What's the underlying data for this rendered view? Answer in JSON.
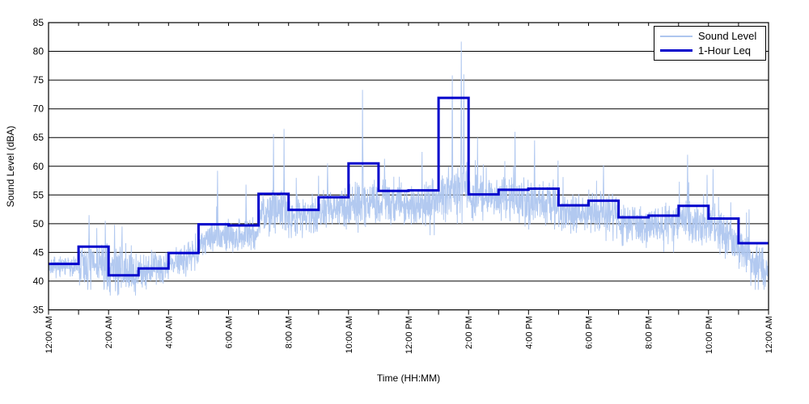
{
  "colors": {
    "background": "#ffffff",
    "grid": "#000000",
    "axis": "#000000",
    "text": "#000000",
    "sound_level_line": "#aec6ef",
    "leq_line": "#0000cc"
  },
  "chart_data": {
    "type": "line",
    "title": "",
    "xlabel": "Time (HH:MM)",
    "ylabel": "Sound Level (dBA)",
    "x_axis": {
      "unit": "hour-of-day",
      "start_hour": 0,
      "end_hour": 24,
      "major_tick_every_hours": 2,
      "minor_tick_every_hours": 1,
      "tick_labels": [
        "12:00 AM",
        "2:00 AM",
        "4:00 AM",
        "6:00 AM",
        "8:00 AM",
        "10:00 AM",
        "12:00 PM",
        "2:00 PM",
        "4:00 PM",
        "6:00 PM",
        "8:00 PM",
        "10:00 PM",
        "12:00 AM"
      ],
      "labels_rotated_degrees": 90
    },
    "y_axis": {
      "min": 35,
      "max": 85,
      "tick_step": 5,
      "tick_labels": [
        "35",
        "40",
        "45",
        "50",
        "55",
        "60",
        "65",
        "70",
        "75",
        "80",
        "85"
      ]
    },
    "grid": "horizontal-only",
    "legend": {
      "position": "top-right",
      "entries": [
        {
          "label": "Sound Level",
          "color": "#aec6ef",
          "line_width": 1
        },
        {
          "label": "1-Hour Leq",
          "color": "#0000cc",
          "line_width": 3
        }
      ]
    },
    "series": [
      {
        "name": "Sound Level",
        "style": "noisy-fast-samples",
        "color": "#aec6ef",
        "approximate_reconstruction": true,
        "samples_per_hour": 120,
        "seed": 7,
        "hourly_envelope": [
          {
            "start": 42.5,
            "end": 42.5,
            "spread": 1.1,
            "min": 40.5,
            "max": 45.5
          },
          {
            "start": 43.0,
            "end": 42.5,
            "spread": 2.6,
            "min": 38.5,
            "max": 50.5
          },
          {
            "start": 42.0,
            "end": 41.5,
            "spread": 2.8,
            "min": 37.5,
            "max": 50.0
          },
          {
            "start": 41.8,
            "end": 42.5,
            "spread": 1.9,
            "min": 38.0,
            "max": 47.0
          },
          {
            "start": 42.8,
            "end": 45.0,
            "spread": 1.6,
            "min": 40.0,
            "max": 48.5
          },
          {
            "start": 47.0,
            "end": 48.0,
            "spread": 1.7,
            "min": 43.5,
            "max": 53.0
          },
          {
            "start": 47.8,
            "end": 48.5,
            "spread": 1.7,
            "min": 45.0,
            "max": 54.0
          },
          {
            "start": 51.5,
            "end": 52.5,
            "spread": 2.3,
            "min": 47.0,
            "max": 60.0
          },
          {
            "start": 51.5,
            "end": 51.5,
            "spread": 2.2,
            "min": 47.5,
            "max": 58.0
          },
          {
            "start": 52.5,
            "end": 53.0,
            "spread": 2.1,
            "min": 49.0,
            "max": 60.0
          },
          {
            "start": 53.5,
            "end": 54.0,
            "spread": 2.4,
            "min": 48.0,
            "max": 62.0
          },
          {
            "start": 54.0,
            "end": 53.5,
            "spread": 2.4,
            "min": 49.0,
            "max": 61.5
          },
          {
            "start": 53.0,
            "end": 54.0,
            "spread": 2.4,
            "min": 48.0,
            "max": 60.5
          },
          {
            "start": 55.0,
            "end": 57.0,
            "spread": 2.8,
            "min": 50.0,
            "max": 67.0
          },
          {
            "start": 54.5,
            "end": 54.5,
            "spread": 2.4,
            "min": 49.5,
            "max": 63.0
          },
          {
            "start": 54.5,
            "end": 54.5,
            "spread": 2.4,
            "min": 49.5,
            "max": 64.0
          },
          {
            "start": 54.0,
            "end": 53.5,
            "spread": 2.4,
            "min": 49.0,
            "max": 63.0
          },
          {
            "start": 51.8,
            "end": 52.0,
            "spread": 2.1,
            "min": 47.5,
            "max": 58.5
          },
          {
            "start": 52.0,
            "end": 51.5,
            "spread": 2.2,
            "min": 47.0,
            "max": 60.0
          },
          {
            "start": 49.8,
            "end": 49.5,
            "spread": 2.1,
            "min": 45.0,
            "max": 56.5
          },
          {
            "start": 49.8,
            "end": 50.0,
            "spread": 2.1,
            "min": 45.0,
            "max": 57.0
          },
          {
            "start": 51.0,
            "end": 50.0,
            "spread": 2.3,
            "min": 45.5,
            "max": 61.0
          },
          {
            "start": 50.0,
            "end": 46.5,
            "spread": 2.4,
            "min": 43.0,
            "max": 58.0
          },
          {
            "start": 45.5,
            "end": 41.5,
            "spread": 2.2,
            "min": 38.5,
            "max": 52.5
          }
        ],
        "notable_spikes": [
          {
            "hour": 1.35,
            "value": 51.5
          },
          {
            "hour": 2.2,
            "value": 49.8
          },
          {
            "hour": 2.45,
            "value": 49.5
          },
          {
            "hour": 4.9,
            "value": 48.3
          },
          {
            "hour": 5.63,
            "value": 59.2
          },
          {
            "hour": 6.58,
            "value": 56.8
          },
          {
            "hour": 7.5,
            "value": 65.6
          },
          {
            "hour": 7.85,
            "value": 66.5
          },
          {
            "hour": 9.3,
            "value": 60.5
          },
          {
            "hour": 10.47,
            "value": 73.3
          },
          {
            "hour": 11.2,
            "value": 61.3
          },
          {
            "hour": 12.45,
            "value": 62.5
          },
          {
            "hour": 13.46,
            "value": 75.8
          },
          {
            "hour": 13.76,
            "value": 81.7
          },
          {
            "hour": 13.84,
            "value": 76.0
          },
          {
            "hour": 14.3,
            "value": 65.0
          },
          {
            "hour": 15.55,
            "value": 66.0
          },
          {
            "hour": 16.2,
            "value": 64.5
          },
          {
            "hour": 18.5,
            "value": 60.2
          },
          {
            "hour": 21.3,
            "value": 62.0
          },
          {
            "hour": 22.15,
            "value": 59.5
          },
          {
            "hour": 23.35,
            "value": 52.5
          }
        ]
      },
      {
        "name": "1-Hour Leq",
        "style": "step",
        "color": "#0000cc",
        "hourly_values": [
          43.0,
          46.0,
          41.0,
          42.2,
          44.9,
          49.9,
          49.7,
          55.2,
          52.4,
          54.6,
          60.5,
          55.7,
          55.8,
          71.9,
          55.1,
          55.9,
          56.1,
          53.2,
          54.0,
          51.1,
          51.4,
          53.1,
          50.9,
          46.6
        ]
      }
    ]
  }
}
